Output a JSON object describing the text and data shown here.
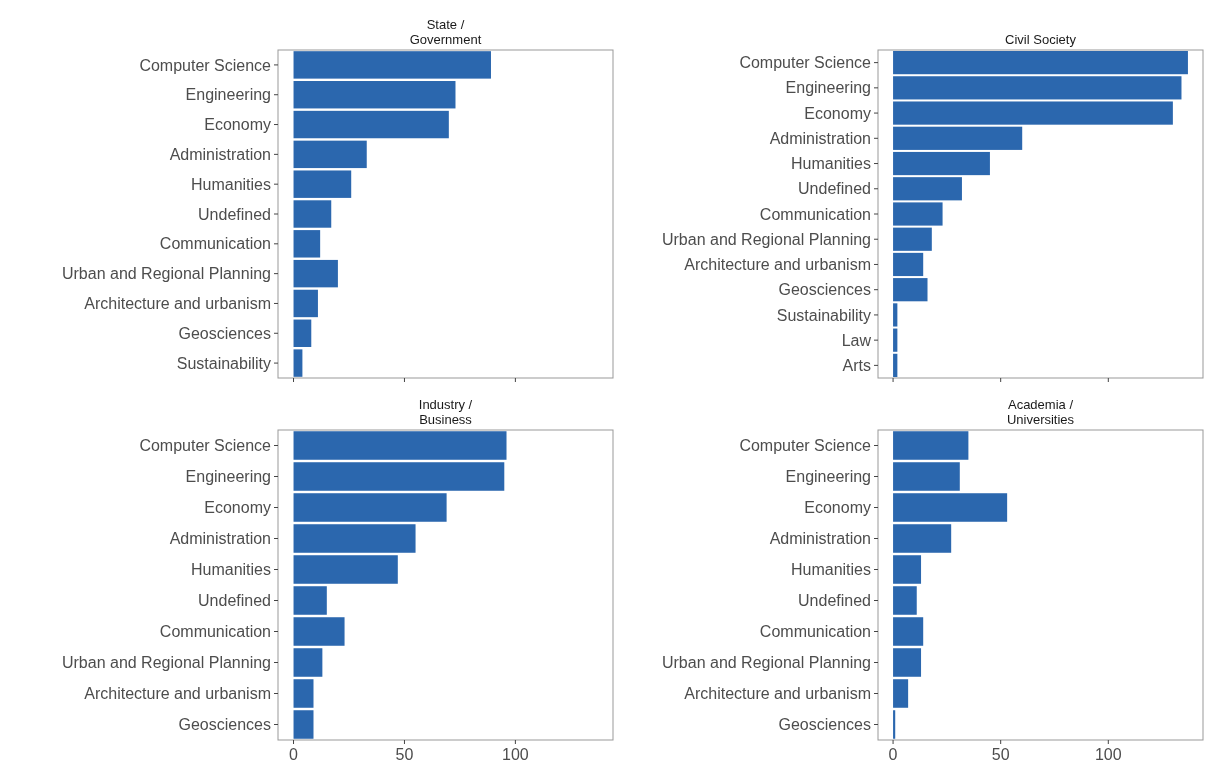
{
  "chart_data": [
    {
      "type": "bar",
      "orientation": "horizontal",
      "title": "State /\nGovernment",
      "categories": [
        "Computer Science",
        "Engineering",
        "Economy",
        "Administration",
        "Humanities",
        "Undefined",
        "Communication",
        "Urban and Regional Planning",
        "Architecture and urbanism",
        "Geosciences",
        "Sustainability"
      ],
      "values": [
        89,
        73,
        70,
        33,
        26,
        17,
        12,
        20,
        11,
        8,
        4
      ],
      "color": "#2b67ae",
      "xlim": [
        -7,
        144
      ],
      "xticks": [
        0,
        50,
        100
      ],
      "tick_labels": "y"
    },
    {
      "type": "bar",
      "orientation": "horizontal",
      "title": "Civil Society",
      "categories": [
        "Computer Science",
        "Engineering",
        "Economy",
        "Administration",
        "Humanities",
        "Undefined",
        "Communication",
        "Urban and Regional Planning",
        "Architecture and urbanism",
        "Geosciences",
        "Sustainability",
        "Law",
        "Arts"
      ],
      "values": [
        137,
        134,
        130,
        60,
        45,
        32,
        23,
        18,
        14,
        16,
        2,
        2,
        2
      ],
      "color": "#2b67ae",
      "xlim": [
        -7,
        144
      ],
      "xticks": [
        0,
        50,
        100
      ],
      "tick_labels": "y"
    },
    {
      "type": "bar",
      "orientation": "horizontal",
      "title": "Industry /\nBusiness",
      "categories": [
        "Computer Science",
        "Engineering",
        "Economy",
        "Administration",
        "Humanities",
        "Undefined",
        "Communication",
        "Urban and Regional Planning",
        "Architecture and urbanism",
        "Geosciences"
      ],
      "values": [
        96,
        95,
        69,
        55,
        47,
        15,
        23,
        13,
        9,
        9
      ],
      "color": "#2b67ae",
      "xlim": [
        -7,
        144
      ],
      "xticks": [
        0,
        50,
        100
      ]
    },
    {
      "type": "bar",
      "orientation": "horizontal",
      "title": "Academia /\nUniversities",
      "categories": [
        "Computer Science",
        "Engineering",
        "Economy",
        "Administration",
        "Humanities",
        "Undefined",
        "Communication",
        "Urban and Regional Planning",
        "Architecture and urbanism",
        "Geosciences"
      ],
      "values": [
        35,
        31,
        53,
        27,
        13,
        11,
        14,
        13,
        7,
        1
      ],
      "color": "#2b67ae",
      "xlim": [
        -7,
        144
      ],
      "xticks": [
        0,
        50,
        100
      ]
    }
  ]
}
